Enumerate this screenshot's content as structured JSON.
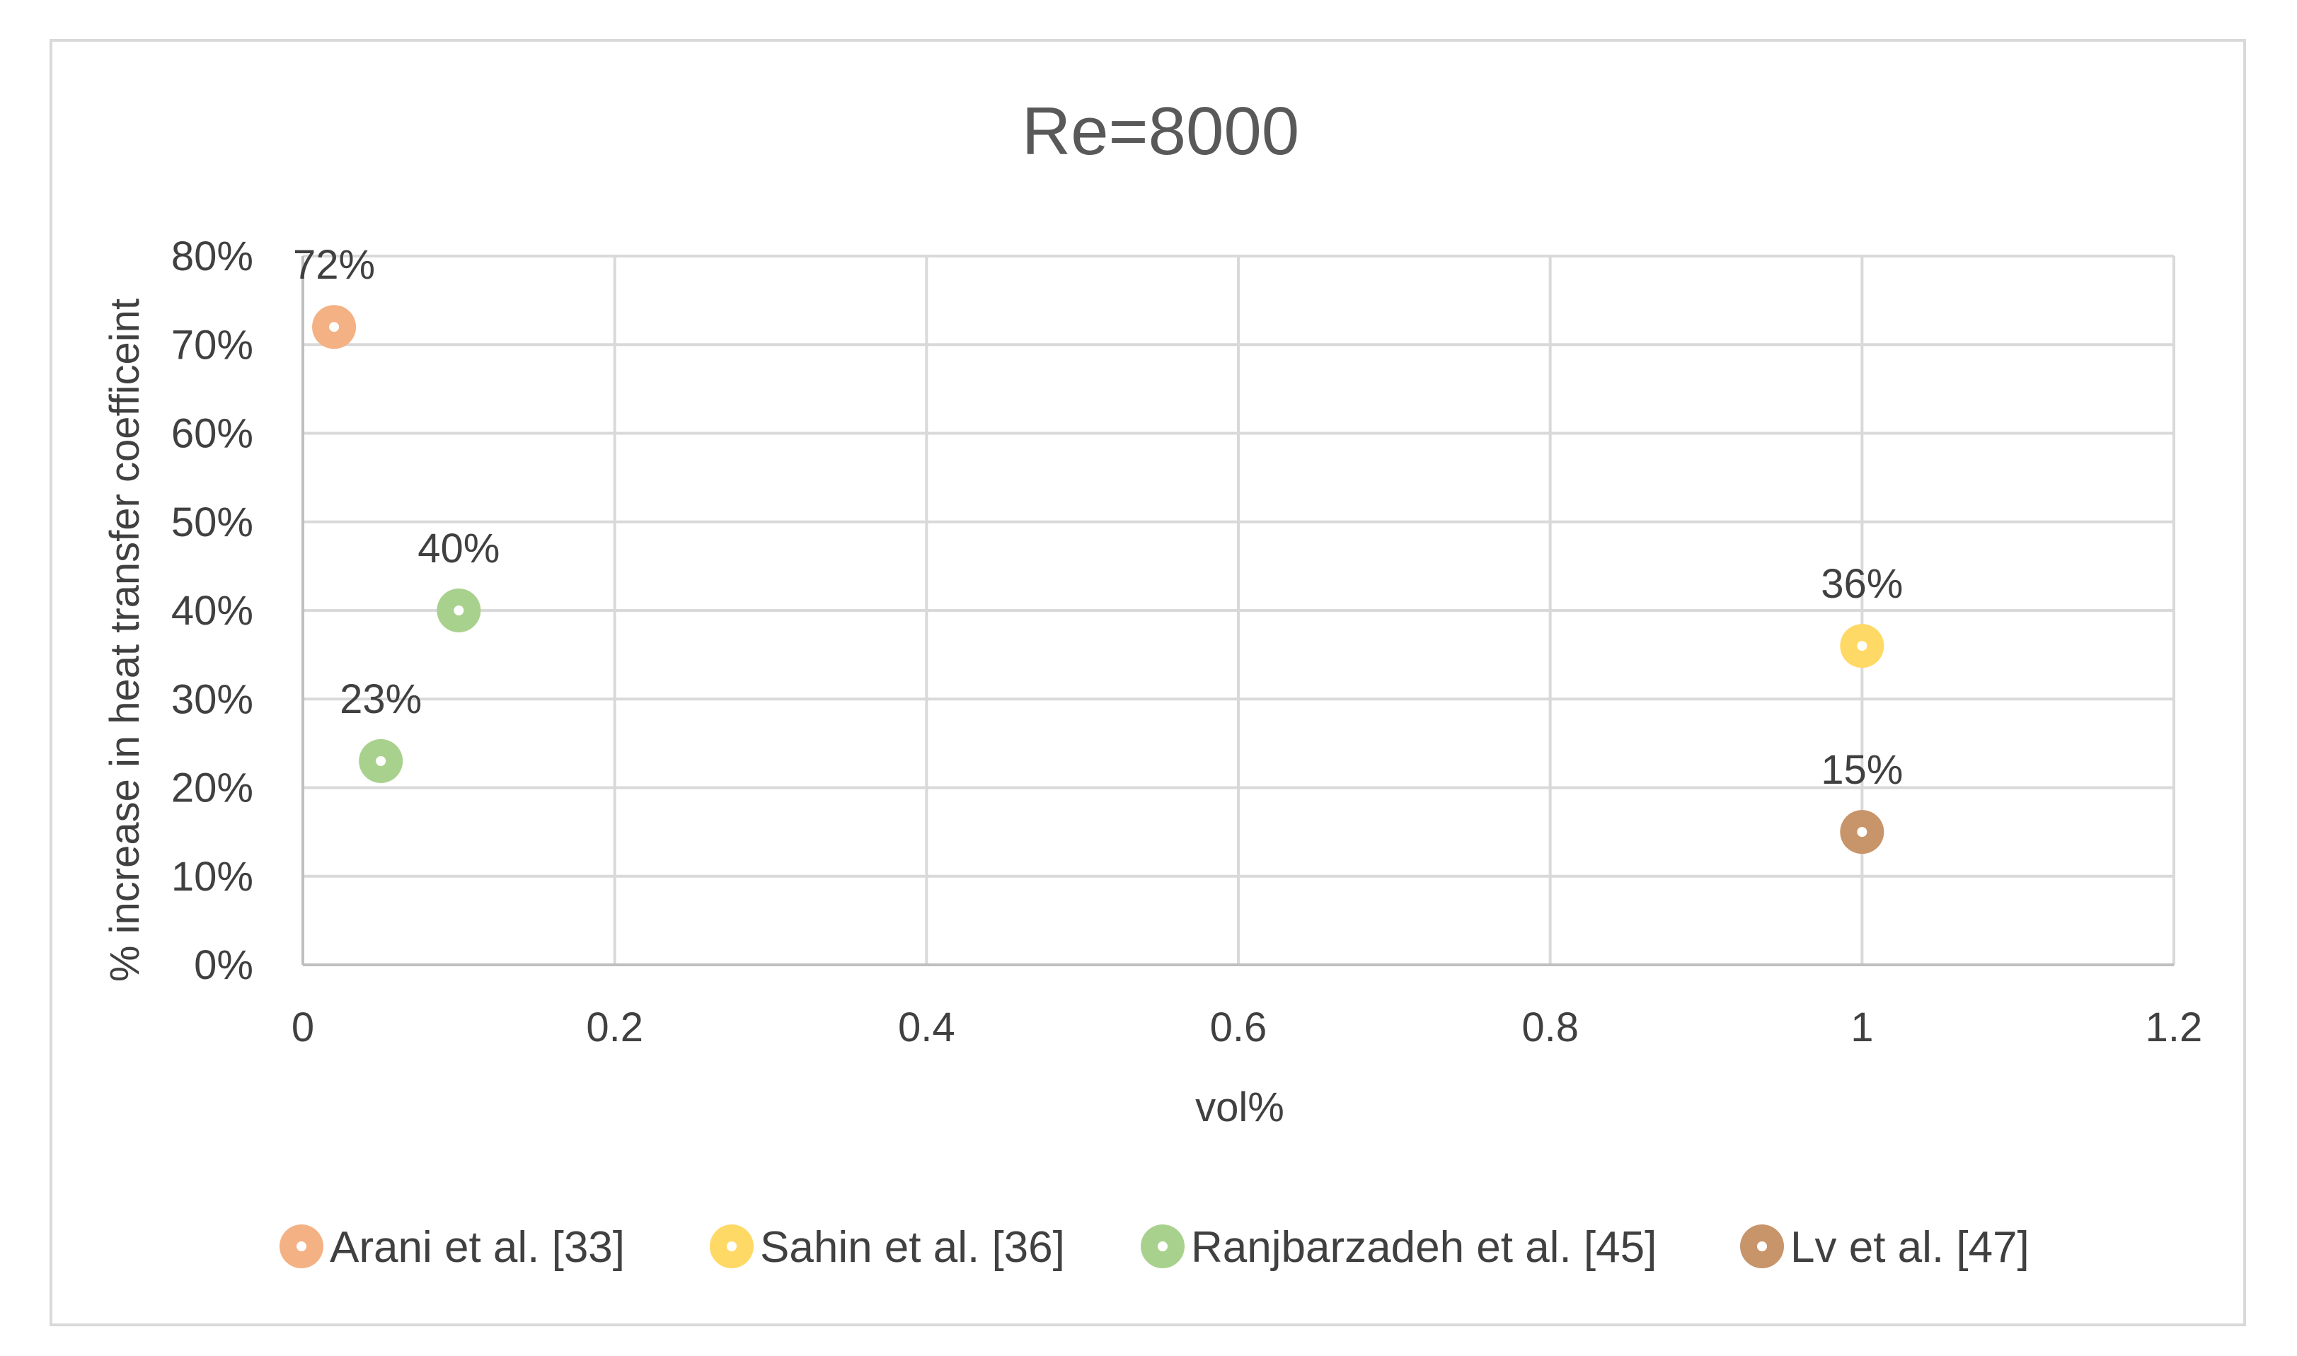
{
  "chart_data": {
    "type": "scatter",
    "title": "Re=8000",
    "xlabel": "vol%",
    "ylabel": "% increase in heat transfer coefficeint",
    "xlim": [
      0,
      1.2
    ],
    "ylim": [
      0,
      0.8
    ],
    "x_ticks": [
      "0",
      "0.2",
      "0.4",
      "0.6",
      "0.8",
      "1",
      "1.2"
    ],
    "y_ticks": [
      "0%",
      "10%",
      "20%",
      "30%",
      "40%",
      "50%",
      "60%",
      "70%",
      "80%"
    ],
    "grid": true,
    "legend_position": "bottom",
    "series": [
      {
        "name": "Arani et al. [33]",
        "color": "#f4b183",
        "points": [
          {
            "x": 0.02,
            "y": 0.72,
            "label": "72%"
          }
        ]
      },
      {
        "name": "Sahin et al. [36]",
        "color": "#ffd966",
        "points": [
          {
            "x": 1.0,
            "y": 0.36,
            "label": "36%"
          }
        ]
      },
      {
        "name": "Ranjbarzadeh et al. [45]",
        "color": "#a9d18e",
        "points": [
          {
            "x": 0.05,
            "y": 0.23,
            "label": "23%"
          },
          {
            "x": 0.1,
            "y": 0.4,
            "label": "40%"
          }
        ]
      },
      {
        "name": "Lv et al. [47]",
        "color": "#c8946a",
        "points": [
          {
            "x": 1.0,
            "y": 0.15,
            "label": "15%"
          }
        ]
      }
    ]
  }
}
